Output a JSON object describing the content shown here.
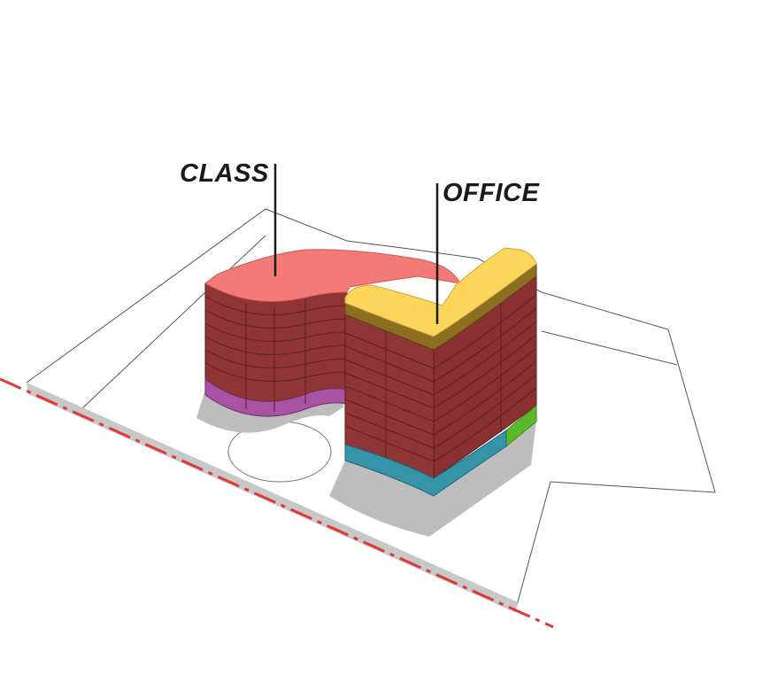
{
  "labels": {
    "class": "CLASS",
    "office": "OFFICE"
  },
  "colors": {
    "class_roof": "#f47a78",
    "office_roof": "#fbd65a",
    "office_roof_band": "#8d6f22",
    "facade": "#8f3535",
    "facade_lines": "#5e1f1f",
    "ground_purple": "#a852a3",
    "ground_teal": "#3594a8",
    "green_accent": "#5bb92a",
    "shadow": "#bdbdbd",
    "property_line": "#e03a36",
    "site_outline": "#555555"
  }
}
